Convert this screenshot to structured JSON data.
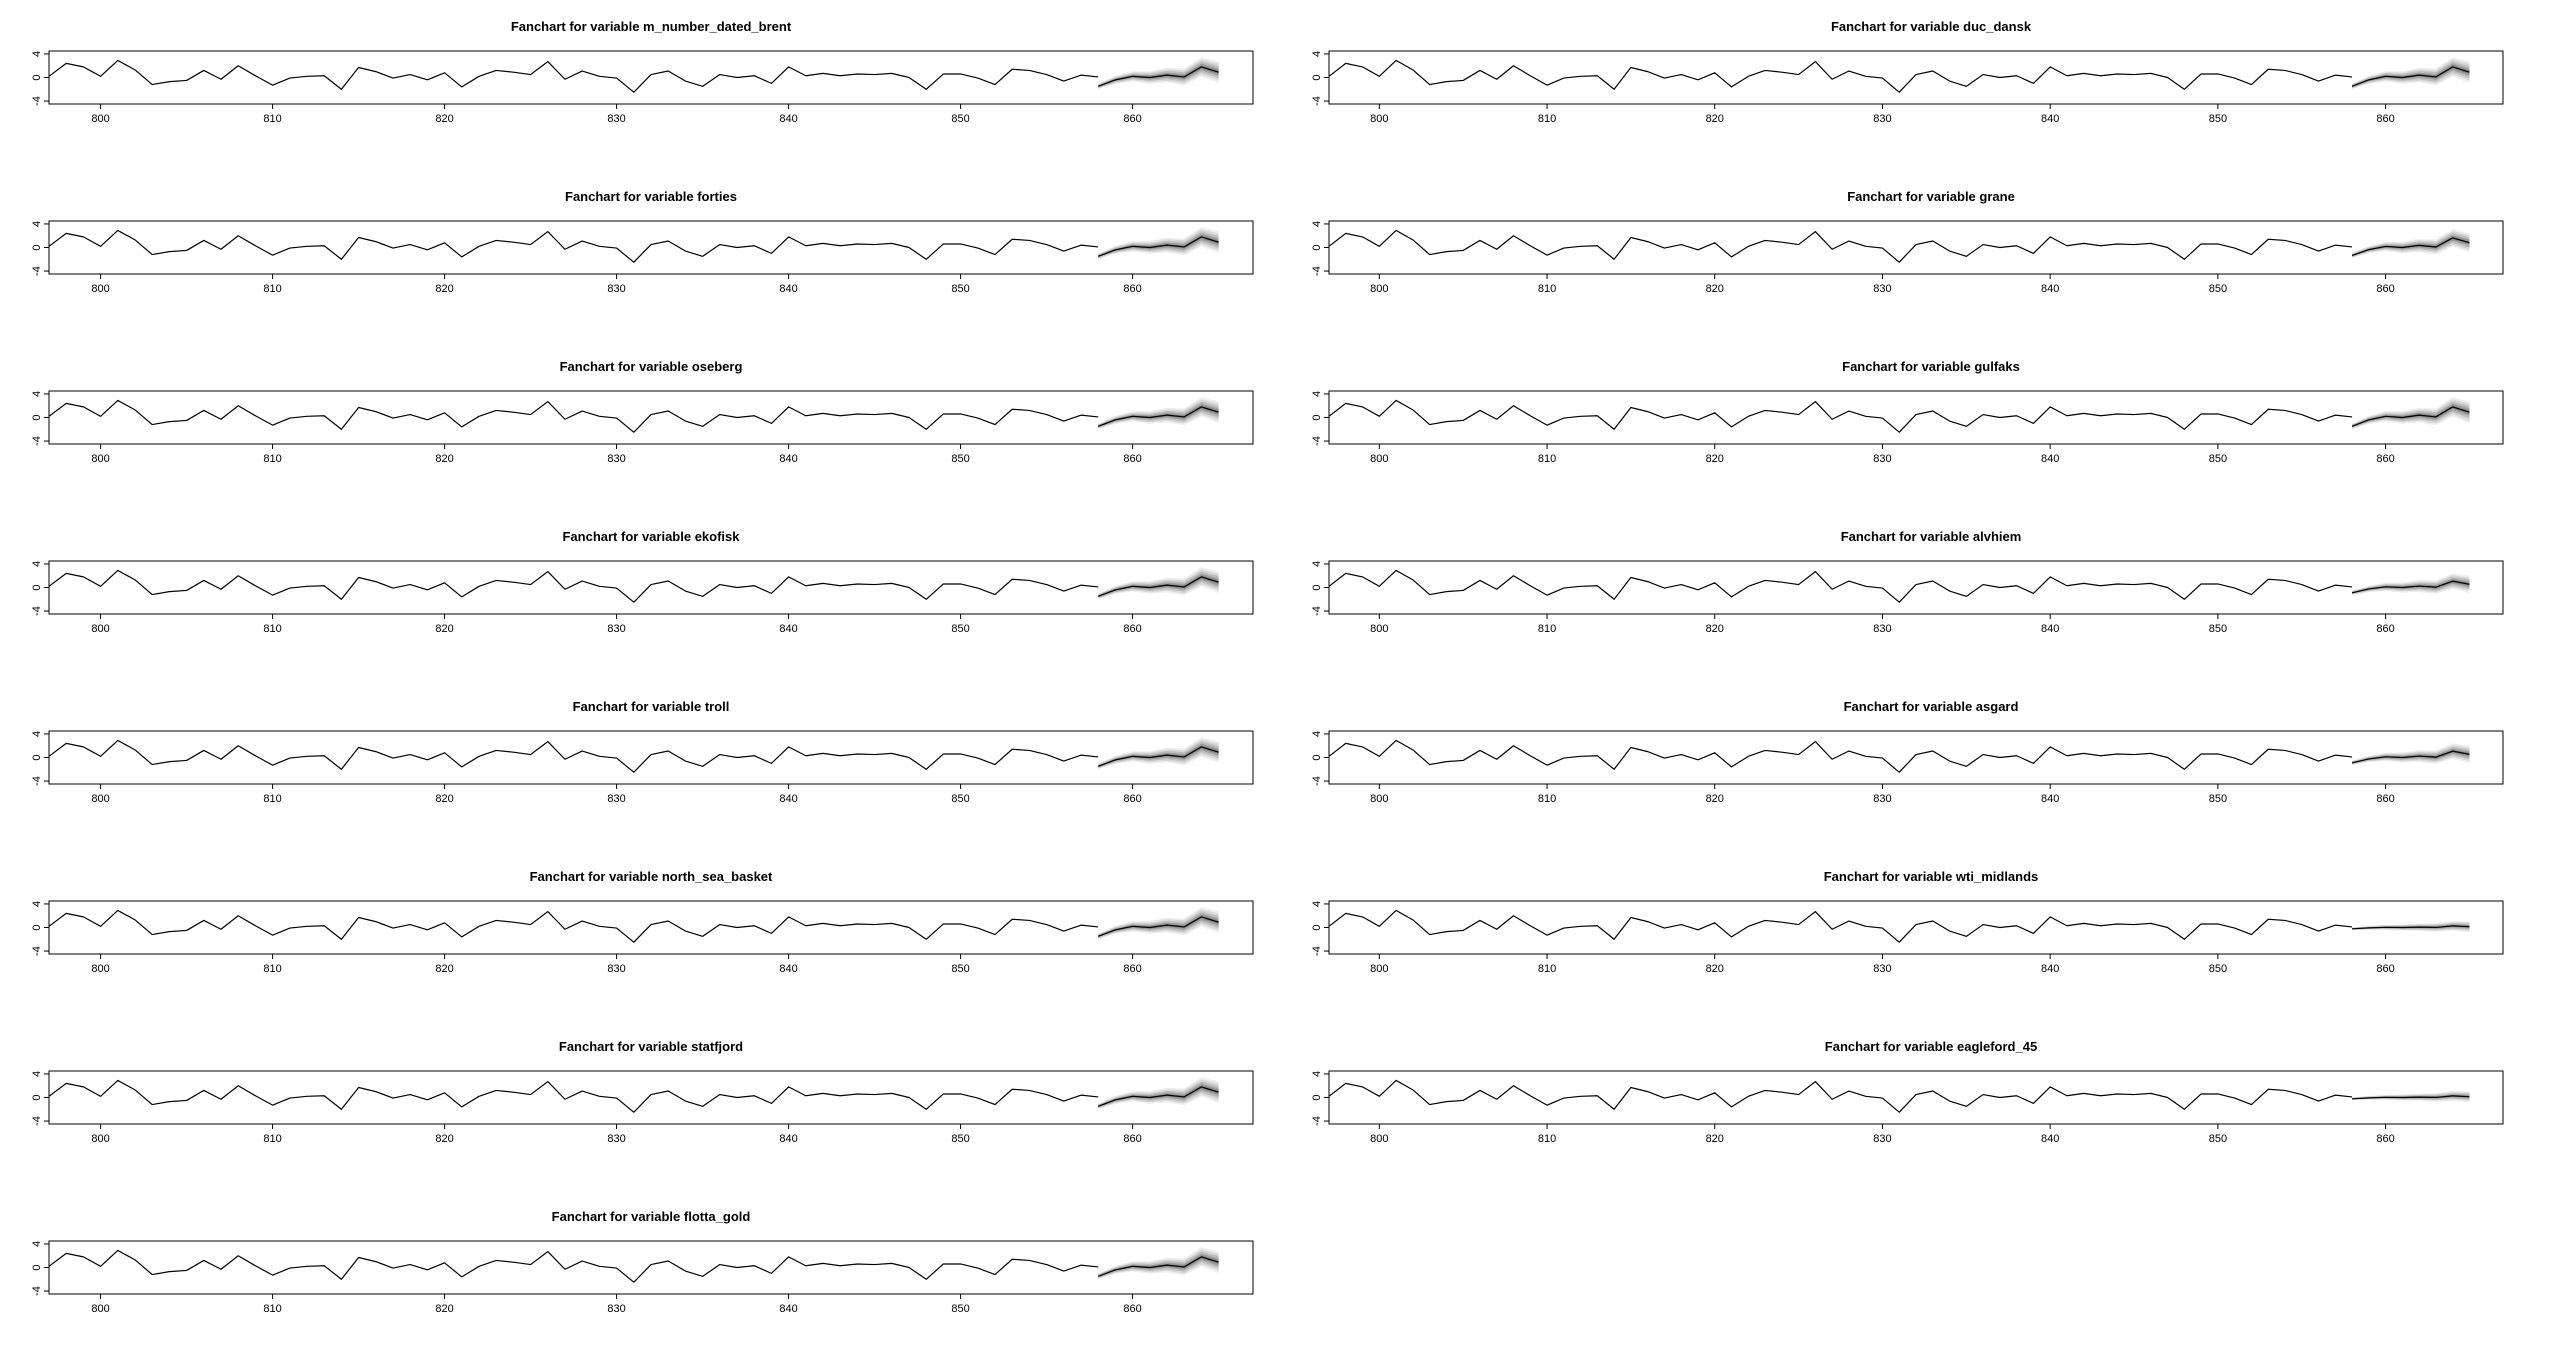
{
  "chart_data": [
    {
      "type": "line",
      "title": "Fanchart for variable m_number_dated_brent",
      "xlabel": "",
      "ylabel": "",
      "xticks": [
        "800",
        "810",
        "820",
        "830",
        "840",
        "850",
        "860"
      ],
      "yticks": [
        "-4",
        "0",
        "4"
      ],
      "xlim": [
        797,
        867
      ],
      "ylim": [
        -4.5,
        4.5
      ],
      "fan_amp": 1.0,
      "fan_width": 1.0
    },
    {
      "type": "line",
      "title": "Fanchart for variable duc_dansk",
      "xlabel": "",
      "ylabel": "",
      "xticks": [
        "800",
        "810",
        "820",
        "830",
        "840",
        "850",
        "860"
      ],
      "yticks": [
        "-4",
        "0",
        "4"
      ],
      "xlim": [
        797,
        867
      ],
      "ylim": [
        -4.5,
        4.5
      ],
      "fan_amp": 1.0,
      "fan_width": 1.0
    },
    {
      "type": "line",
      "title": "Fanchart for variable forties",
      "xlabel": "",
      "ylabel": "",
      "xticks": [
        "800",
        "810",
        "820",
        "830",
        "840",
        "850",
        "860"
      ],
      "yticks": [
        "-4",
        "0",
        "4"
      ],
      "xlim": [
        797,
        867
      ],
      "ylim": [
        -4.5,
        4.5
      ],
      "fan_amp": 1.0,
      "fan_width": 1.0
    },
    {
      "type": "line",
      "title": "Fanchart for variable grane",
      "xlabel": "",
      "ylabel": "",
      "xticks": [
        "800",
        "810",
        "820",
        "830",
        "840",
        "850",
        "860"
      ],
      "yticks": [
        "-4",
        "0",
        "4"
      ],
      "xlim": [
        797,
        867
      ],
      "ylim": [
        -4.5,
        4.5
      ],
      "fan_amp": 0.9,
      "fan_width": 0.9
    },
    {
      "type": "line",
      "title": "Fanchart for variable oseberg",
      "xlabel": "",
      "ylabel": "",
      "xticks": [
        "800",
        "810",
        "820",
        "830",
        "840",
        "850",
        "860"
      ],
      "yticks": [
        "-4",
        "0",
        "4"
      ],
      "xlim": [
        797,
        867
      ],
      "ylim": [
        -4.5,
        4.5
      ],
      "fan_amp": 1.0,
      "fan_width": 1.0
    },
    {
      "type": "line",
      "title": "Fanchart for variable gulfaks",
      "xlabel": "",
      "ylabel": "",
      "xticks": [
        "800",
        "810",
        "820",
        "830",
        "840",
        "850",
        "860"
      ],
      "yticks": [
        "-4",
        "0",
        "4"
      ],
      "xlim": [
        797,
        867
      ],
      "ylim": [
        -4.5,
        4.5
      ],
      "fan_amp": 1.0,
      "fan_width": 1.0
    },
    {
      "type": "line",
      "title": "Fanchart for variable ekofisk",
      "xlabel": "",
      "ylabel": "",
      "xticks": [
        "800",
        "810",
        "820",
        "830",
        "840",
        "850",
        "860"
      ],
      "yticks": [
        "-4",
        "0",
        "4"
      ],
      "xlim": [
        797,
        867
      ],
      "ylim": [
        -4.5,
        4.5
      ],
      "fan_amp": 1.0,
      "fan_width": 1.0
    },
    {
      "type": "line",
      "title": "Fanchart for variable alvhiem",
      "xlabel": "",
      "ylabel": "",
      "xticks": [
        "800",
        "810",
        "820",
        "830",
        "840",
        "850",
        "860"
      ],
      "yticks": [
        "-4",
        "0",
        "4"
      ],
      "xlim": [
        797,
        867
      ],
      "ylim": [
        -4.5,
        4.5
      ],
      "fan_amp": 0.6,
      "fan_width": 0.8
    },
    {
      "type": "line",
      "title": "Fanchart for variable troll",
      "xlabel": "",
      "ylabel": "",
      "xticks": [
        "800",
        "810",
        "820",
        "830",
        "840",
        "850",
        "860"
      ],
      "yticks": [
        "-4",
        "0",
        "4"
      ],
      "xlim": [
        797,
        867
      ],
      "ylim": [
        -4.5,
        4.5
      ],
      "fan_amp": 1.0,
      "fan_width": 1.0
    },
    {
      "type": "line",
      "title": "Fanchart for variable asgard",
      "xlabel": "",
      "ylabel": "",
      "xticks": [
        "800",
        "810",
        "820",
        "830",
        "840",
        "850",
        "860"
      ],
      "yticks": [
        "-4",
        "0",
        "4"
      ],
      "xlim": [
        797,
        867
      ],
      "ylim": [
        -4.5,
        4.5
      ],
      "fan_amp": 0.6,
      "fan_width": 0.8
    },
    {
      "type": "line",
      "title": "Fanchart for variable north_sea_basket",
      "xlabel": "",
      "ylabel": "",
      "xticks": [
        "800",
        "810",
        "820",
        "830",
        "840",
        "850",
        "860"
      ],
      "yticks": [
        "-4",
        "0",
        "4"
      ],
      "xlim": [
        797,
        867
      ],
      "ylim": [
        -4.5,
        4.5
      ],
      "fan_amp": 1.0,
      "fan_width": 1.0
    },
    {
      "type": "line",
      "title": "Fanchart for variable wti_midlands",
      "xlabel": "",
      "ylabel": "",
      "xticks": [
        "800",
        "810",
        "820",
        "830",
        "840",
        "850",
        "860"
      ],
      "yticks": [
        "-4",
        "0",
        "4"
      ],
      "xlim": [
        797,
        867
      ],
      "ylim": [
        -4.5,
        4.5
      ],
      "fan_amp": 0.15,
      "fan_width": 0.5
    },
    {
      "type": "line",
      "title": "Fanchart for variable statfjord",
      "xlabel": "",
      "ylabel": "",
      "xticks": [
        "800",
        "810",
        "820",
        "830",
        "840",
        "850",
        "860"
      ],
      "yticks": [
        "-4",
        "0",
        "4"
      ],
      "xlim": [
        797,
        867
      ],
      "ylim": [
        -4.5,
        4.5
      ],
      "fan_amp": 1.0,
      "fan_width": 1.0
    },
    {
      "type": "line",
      "title": "Fanchart for variable eagleford_45",
      "xlabel": "",
      "ylabel": "",
      "xticks": [
        "800",
        "810",
        "820",
        "830",
        "840",
        "850",
        "860"
      ],
      "yticks": [
        "-4",
        "0",
        "4"
      ],
      "xlim": [
        797,
        867
      ],
      "ylim": [
        -4.5,
        4.5
      ],
      "fan_amp": 0.15,
      "fan_width": 0.5
    },
    {
      "type": "line",
      "title": "Fanchart for variable flotta_gold",
      "xlabel": "",
      "ylabel": "",
      "xticks": [
        "800",
        "810",
        "820",
        "830",
        "840",
        "850",
        "860"
      ],
      "yticks": [
        "-4",
        "0",
        "4"
      ],
      "xlim": [
        797,
        867
      ],
      "ylim": [
        -4.5,
        4.5
      ],
      "fan_amp": 1.0,
      "fan_width": 1.0
    }
  ],
  "history": {
    "x": [
      797,
      798,
      799,
      800,
      801,
      802,
      803,
      804,
      805,
      806,
      807,
      808,
      809,
      810,
      811,
      812,
      813,
      814,
      815,
      816,
      817,
      818,
      819,
      820,
      821,
      822,
      823,
      824,
      825,
      826,
      827,
      828,
      829,
      830,
      831,
      832,
      833,
      834,
      835,
      836,
      837,
      838,
      839,
      840,
      841,
      842,
      843,
      844,
      845,
      846,
      847,
      848,
      849,
      850,
      851,
      852,
      853,
      854,
      855,
      856,
      857,
      858
    ],
    "y": [
      0.2,
      2.4,
      1.8,
      0.2,
      2.9,
      1.3,
      -1.2,
      -0.7,
      -0.5,
      1.2,
      -0.3,
      2.0,
      0.3,
      -1.3,
      -0.1,
      0.2,
      0.3,
      -2.0,
      1.7,
      1.0,
      -0.1,
      0.5,
      -0.4,
      0.8,
      -1.6,
      0.2,
      1.2,
      0.9,
      0.5,
      2.7,
      -0.3,
      1.1,
      0.2,
      -0.1,
      -2.5,
      0.5,
      1.1,
      -0.6,
      -1.5,
      0.5,
      0.0,
      0.3,
      -1.0,
      1.8,
      0.3,
      0.7,
      0.3,
      0.6,
      0.5,
      0.7,
      0.0,
      -2.0,
      0.6,
      0.6,
      -0.1,
      -1.2,
      1.4,
      1.2,
      0.5,
      -0.6,
      0.4,
      0.1
    ]
  },
  "forecast": {
    "x": [
      858,
      859,
      860,
      861,
      862,
      863,
      864,
      865
    ],
    "y": [
      -1.5,
      -0.4,
      0.2,
      0.0,
      0.4,
      0.1,
      1.8,
      0.9
    ]
  }
}
